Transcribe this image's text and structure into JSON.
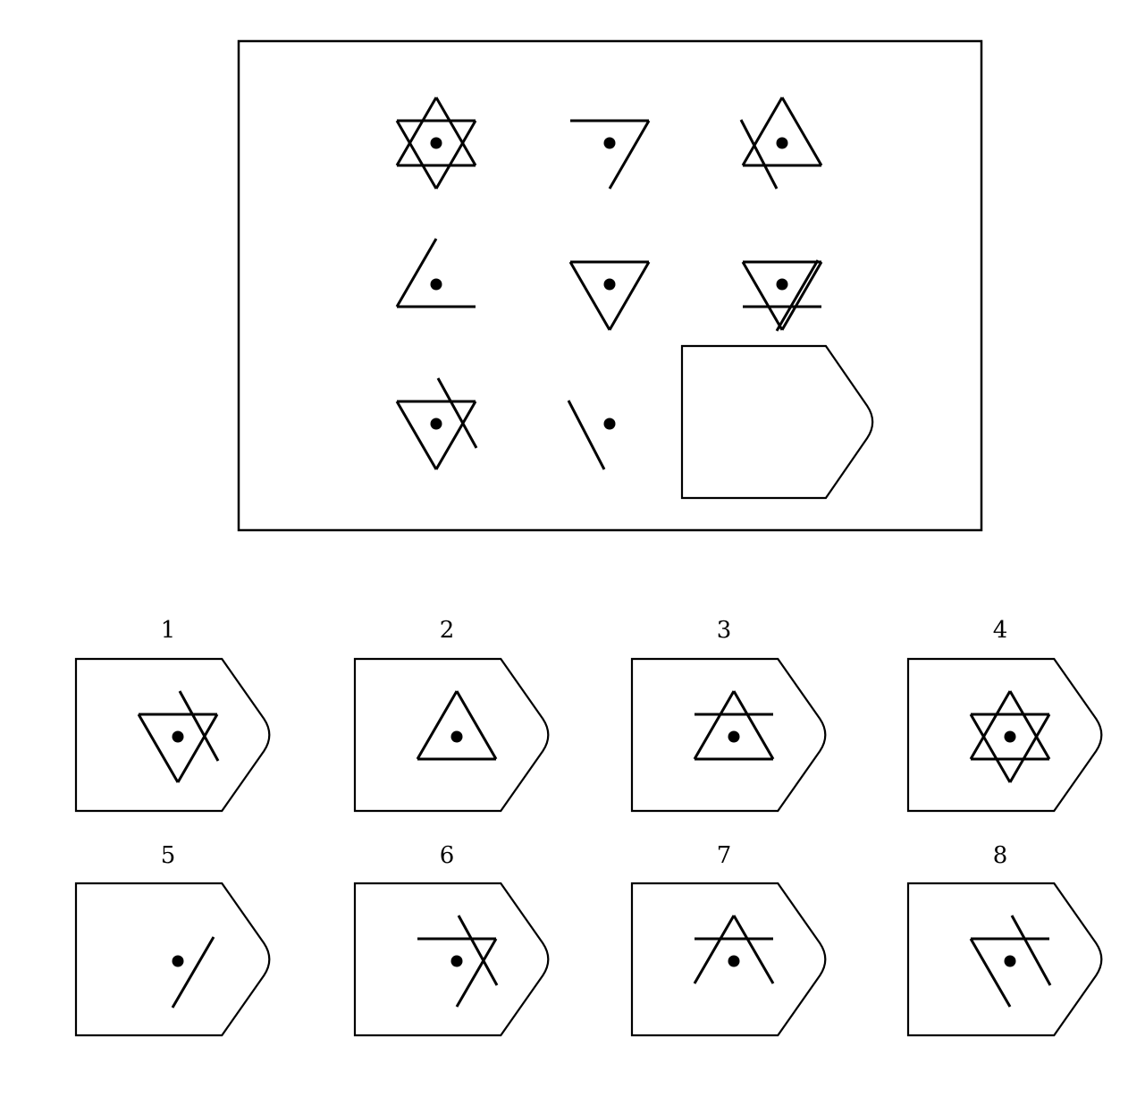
{
  "puzzle": {
    "matrix": [
      [
        "full-star",
        "top-bar-right-slant",
        "up-triangle-with-left-slash"
      ],
      [
        "left-slant-bottom-bar",
        "down-triangle",
        "down-triangle-with-slash-and-bar"
      ],
      [
        "down-triangle-with-right-slash",
        "left-backslash",
        "missing"
      ]
    ],
    "options": [
      {
        "label": "1",
        "figure": "down-triangle-with-right-slash"
      },
      {
        "label": "2",
        "figure": "up-triangle"
      },
      {
        "label": "3",
        "figure": "up-triangle-with-bar"
      },
      {
        "label": "4",
        "figure": "full-star"
      },
      {
        "label": "5",
        "figure": "right-slash"
      },
      {
        "label": "6",
        "figure": "bar-with-crossing-slashes"
      },
      {
        "label": "7",
        "figure": "up-apex-with-bar"
      },
      {
        "label": "8",
        "figure": "down-open-with-right-slash"
      }
    ]
  }
}
